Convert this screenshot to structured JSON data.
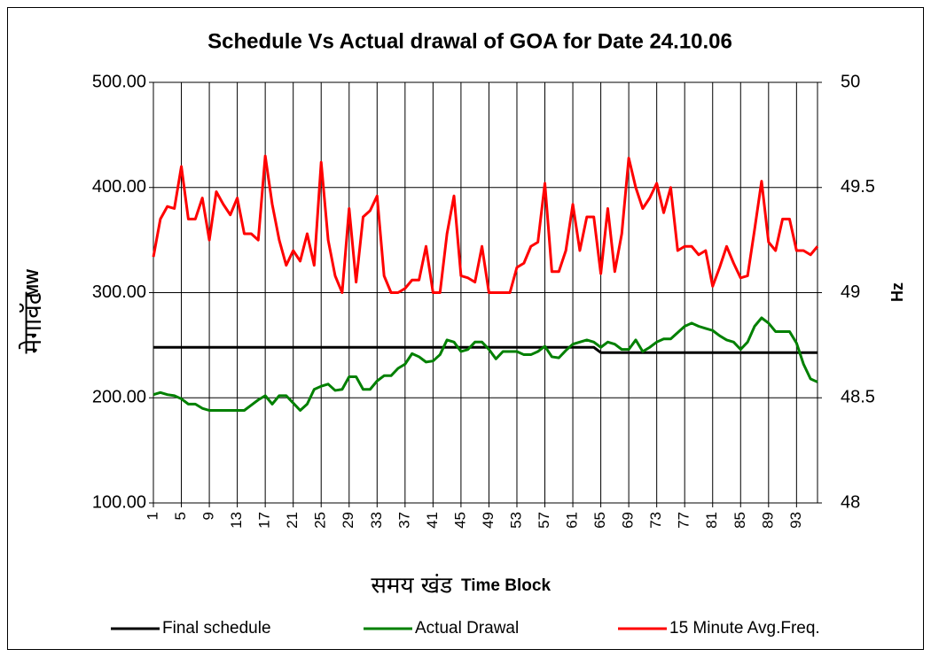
{
  "chart_data": {
    "type": "line",
    "title": "Schedule Vs Actual drawal of GOA for Date 24.10.06",
    "ylabel_hindi": "मेगावॅट",
    "ylabel": "MW",
    "y2label": "Hz",
    "xlabel_hindi": "समय खंड",
    "xlabel": "Time Block",
    "categories": [
      1,
      null,
      null,
      null,
      5,
      null,
      null,
      null,
      9,
      null,
      null,
      null,
      13,
      null,
      null,
      null,
      17,
      null,
      null,
      null,
      21,
      null,
      null,
      null,
      25,
      null,
      null,
      null,
      29,
      null,
      null,
      null,
      33,
      null,
      null,
      null,
      37,
      null,
      null,
      null,
      41,
      null,
      null,
      null,
      45,
      null,
      null,
      null,
      49,
      null,
      null,
      null,
      53,
      null,
      null,
      null,
      57,
      null,
      null,
      null,
      61,
      null,
      null,
      null,
      65,
      null,
      null,
      null,
      69,
      null,
      null,
      null,
      73,
      null,
      null,
      null,
      77,
      null,
      null,
      null,
      81,
      null,
      null,
      null,
      85,
      null,
      null,
      null,
      89,
      null,
      null,
      null,
      93,
      null,
      null,
      null
    ],
    "ylim": [
      100,
      500
    ],
    "yticks": [
      {
        "value": 100,
        "label": "100.00"
      },
      {
        "value": 200,
        "label": "200.00"
      },
      {
        "value": 300,
        "label": "300.00"
      },
      {
        "value": 400,
        "label": "400.00"
      },
      {
        "value": 500,
        "label": "500.00"
      }
    ],
    "y2lim": [
      48,
      50
    ],
    "y2ticks": [
      48,
      48.5,
      49,
      49.5,
      50
    ],
    "grid": true,
    "legend": "bottom",
    "series": [
      {
        "name": "Final schedule",
        "color": "#000000",
        "values": [
          248,
          248,
          248,
          248,
          248,
          248,
          248,
          248,
          248,
          248,
          248,
          248,
          248,
          248,
          248,
          248,
          248,
          248,
          248,
          248,
          248,
          248,
          248,
          248,
          248,
          248,
          248,
          248,
          248,
          248,
          248,
          248,
          248,
          248,
          248,
          248,
          248,
          248,
          248,
          248,
          248,
          248,
          248,
          248,
          248,
          248,
          248,
          248,
          248,
          248,
          248,
          248,
          248,
          248,
          248,
          248,
          248,
          248,
          248,
          248,
          248,
          248,
          248,
          248,
          243,
          243,
          243,
          243,
          243,
          243,
          243,
          243,
          243,
          243,
          243,
          243,
          243,
          243,
          243,
          243,
          243,
          243,
          243,
          243,
          243,
          243,
          243,
          243,
          243,
          243,
          243,
          243,
          243,
          243,
          243,
          243
        ]
      },
      {
        "name": "Actual Drawal",
        "color": "#008000",
        "values": [
          203,
          205,
          203,
          202,
          199,
          194,
          194,
          190,
          188,
          188,
          188,
          188,
          188,
          188,
          193,
          198,
          202,
          194,
          202,
          202,
          195,
          188,
          194,
          208,
          211,
          213,
          207,
          208,
          220,
          220,
          208,
          208,
          216,
          221,
          221,
          228,
          232,
          242,
          239,
          234,
          235,
          241,
          255,
          253,
          244,
          246,
          253,
          253,
          246,
          237,
          244,
          244,
          244,
          241,
          241,
          244,
          249,
          239,
          238,
          245,
          251,
          253,
          255,
          253,
          248,
          253,
          251,
          246,
          246,
          255,
          244,
          248,
          253,
          256,
          256,
          262,
          268,
          271,
          268,
          266,
          264,
          259,
          255,
          253,
          246,
          253,
          268,
          276,
          271,
          263,
          263,
          263,
          252,
          232,
          218,
          215
        ]
      },
      {
        "name": "15 Minute Avg.Freq.",
        "color": "#ff0000",
        "axis": "y2",
        "values": [
          49.17,
          49.35,
          49.41,
          49.4,
          49.6,
          49.35,
          49.35,
          49.45,
          49.25,
          49.48,
          49.42,
          49.37,
          49.45,
          49.28,
          49.28,
          49.25,
          49.65,
          49.42,
          49.25,
          49.13,
          49.2,
          49.15,
          49.28,
          49.13,
          49.62,
          49.25,
          49.08,
          49.0,
          49.4,
          49.05,
          49.36,
          49.39,
          49.46,
          49.08,
          49.0,
          49.0,
          49.02,
          49.06,
          49.06,
          49.22,
          49.0,
          49.0,
          49.28,
          49.46,
          49.08,
          49.07,
          49.05,
          49.22,
          49.0,
          49.0,
          49.0,
          49.0,
          49.12,
          49.14,
          49.22,
          49.24,
          49.52,
          49.1,
          49.1,
          49.2,
          49.42,
          49.2,
          49.36,
          49.36,
          49.09,
          49.4,
          49.1,
          49.28,
          49.64,
          49.5,
          49.4,
          49.45,
          49.52,
          49.38,
          49.5,
          49.2,
          49.22,
          49.22,
          49.18,
          49.2,
          49.03,
          49.12,
          49.22,
          49.14,
          49.07,
          49.08,
          49.3,
          49.53,
          49.24,
          49.2,
          49.35,
          49.35,
          49.2,
          49.2,
          49.18,
          49.22
        ]
      }
    ]
  }
}
